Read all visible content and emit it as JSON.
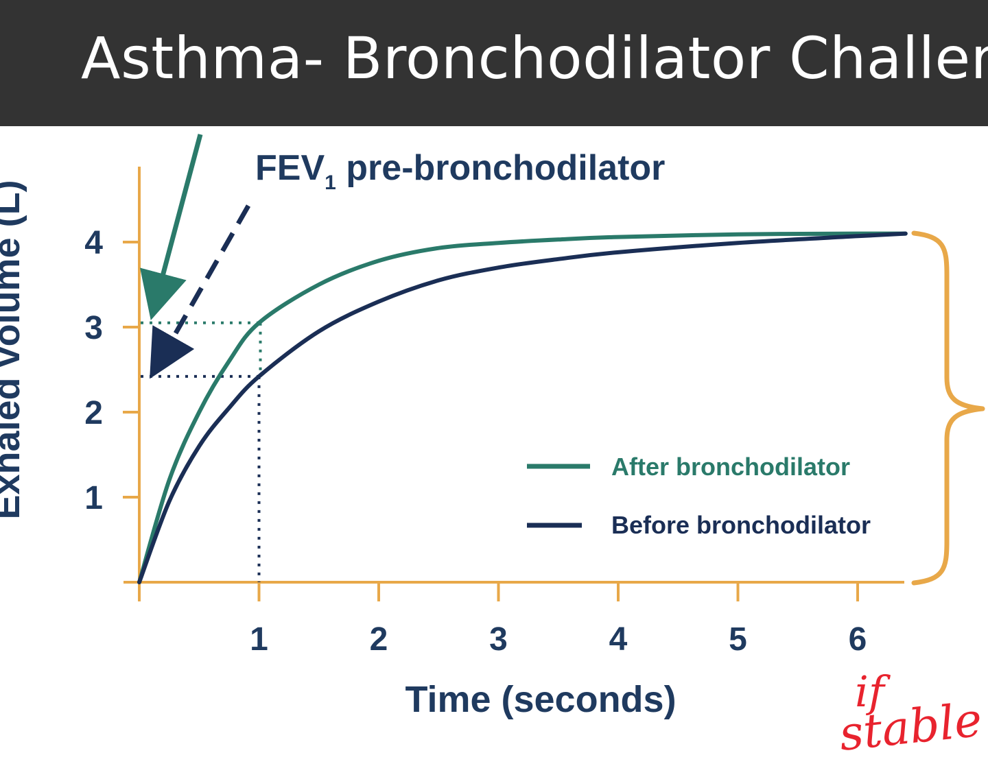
{
  "slide": {
    "title": "Asthma- Bronchodilator Challeng"
  },
  "colors": {
    "title_bg": "#333333",
    "axis": "#e8a849",
    "after": "#2a7a6a",
    "before": "#1a2e55",
    "text": "#1f3a5f",
    "handwriting": "#e8232e"
  },
  "chart_data": {
    "type": "line",
    "xlabel": "Time (seconds)",
    "ylabel": "Exhaled volume (L)",
    "xlim": [
      0,
      6.4
    ],
    "ylim": [
      0,
      4.2
    ],
    "x_ticks": [
      1,
      2,
      3,
      4,
      5,
      6
    ],
    "y_ticks": [
      1,
      2,
      3,
      4
    ],
    "grid": false,
    "legend_position": "bottom-right",
    "series": [
      {
        "name": "After bronchodilator",
        "color": "#2a7a6a",
        "x": [
          0,
          0.25,
          0.5,
          0.75,
          1,
          1.5,
          2,
          2.5,
          3,
          3.5,
          4,
          5,
          6,
          6.4
        ],
        "y": [
          0,
          1.2,
          2.0,
          2.6,
          3.05,
          3.5,
          3.78,
          3.93,
          3.99,
          4.03,
          4.06,
          4.09,
          4.1,
          4.1
        ]
      },
      {
        "name": "Before bronchodilator",
        "color": "#1a2e55",
        "x": [
          0,
          0.25,
          0.5,
          0.75,
          1,
          1.5,
          2,
          2.5,
          3,
          3.5,
          4,
          5,
          6,
          6.4
        ],
        "y": [
          0,
          0.95,
          1.6,
          2.05,
          2.42,
          2.95,
          3.3,
          3.55,
          3.7,
          3.8,
          3.88,
          3.99,
          4.07,
          4.1
        ]
      }
    ],
    "annotations": {
      "fev1_pre_prefix": "FEV",
      "fev1_pre_subscript": "1",
      "fev1_pre_suffix": " pre-bronchodilator",
      "fev1_after": 3.05,
      "fev1_before": 2.42,
      "handwritten_line1": "if",
      "handwritten_line2": "stable"
    }
  }
}
